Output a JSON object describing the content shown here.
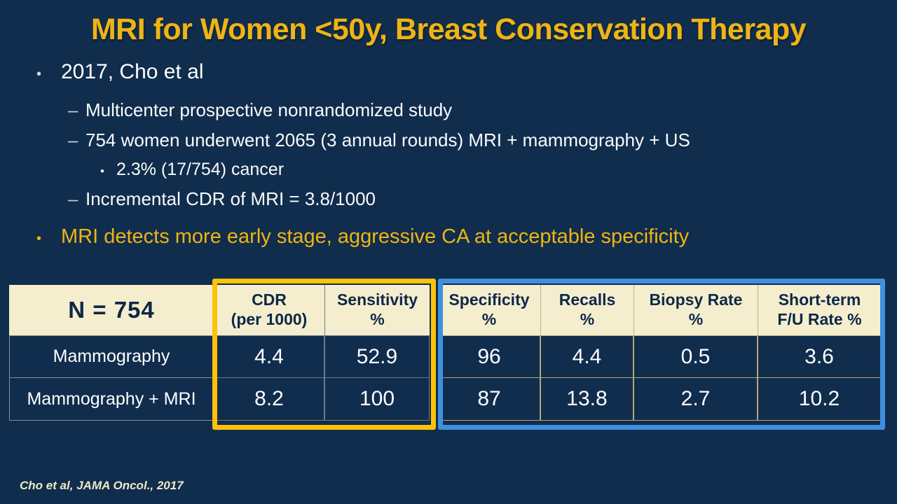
{
  "title": "MRI for Women <50y, Breast Conservation Therapy",
  "bullets": [
    {
      "level": 1,
      "marker": "•",
      "color": "white",
      "text": "2017, Cho et al"
    },
    {
      "level": 2,
      "marker": "–",
      "color": "white",
      "text": "Multicenter prospective nonrandomized study"
    },
    {
      "level": 2,
      "marker": "–",
      "color": "white",
      "text": "754 women underwent 2065 (3 annual rounds) MRI + mammography + US"
    },
    {
      "level": 3,
      "marker": "•",
      "color": "white",
      "text": "2.3% (17/754) cancer"
    },
    {
      "level": 2,
      "marker": "–",
      "color": "white",
      "text": "Incremental CDR of MRI = 3.8/1000"
    },
    {
      "level": 1,
      "marker": "•",
      "color": "gold",
      "text": "MRI detects more early stage, aggressive CA at acceptable specificity"
    }
  ],
  "table": {
    "n_label": "N = 754",
    "headers": [
      "CDR\n(per 1000)",
      "Sensitivity\n%",
      "Specificity\n%",
      "Recalls\n%",
      "Biopsy Rate\n%",
      "Short-term\nF/U Rate %"
    ],
    "rows": [
      {
        "label": "Mammography",
        "values": [
          "4.4",
          "52.9",
          "96",
          "4.4",
          "0.5",
          "3.6"
        ]
      },
      {
        "label": "Mammography + MRI",
        "values": [
          "8.2",
          "100",
          "87",
          "13.8",
          "2.7",
          "10.2"
        ]
      }
    ],
    "highlight_groups": [
      {
        "name": "gold",
        "columns": [
          "CDR (per 1000)",
          "Sensitivity %"
        ],
        "border_color": "#FFC20A"
      },
      {
        "name": "blue",
        "columns": [
          "Specificity %",
          "Recalls %",
          "Biopsy Rate %",
          "Short-term F/U Rate %"
        ],
        "border_color": "#4090DF"
      }
    ]
  },
  "citation": "Cho et al, JAMA Oncol., 2017",
  "colors": {
    "background": "#102D4D",
    "title_gold": "#EFB414",
    "header_cream": "#F4EECF",
    "header_text_navy": "#0D2846",
    "gold_box_border": "#FFC20A",
    "blue_box_border": "#4090DF",
    "body_text_white": "#FFFFFF"
  }
}
